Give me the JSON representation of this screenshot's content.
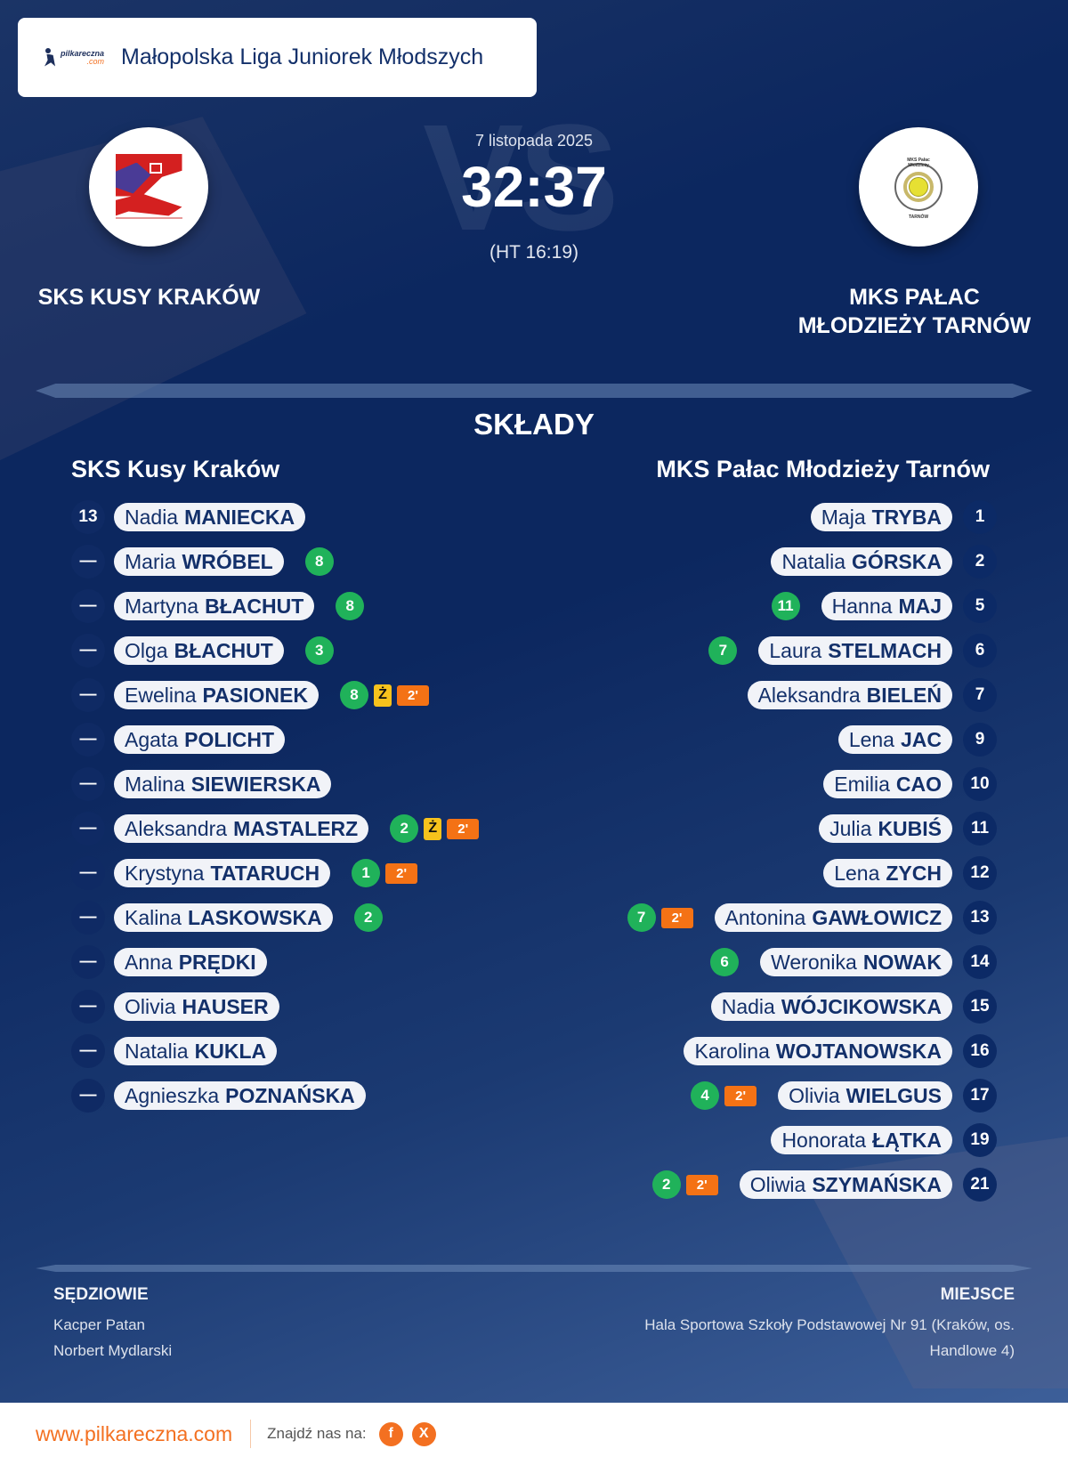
{
  "header": {
    "brand": {
      "name": "pilkareczna",
      "suffix": ".com"
    },
    "league": "Małopolska Liga Juniorek Młodszych"
  },
  "match": {
    "date": "7 listopada 2025",
    "score": "32:37",
    "halftime": "(HT 16:19)",
    "vs_watermark": "VS",
    "home": {
      "name": "SKS KUSY KRAKÓW"
    },
    "away": {
      "name_line1": "MKS PAŁAC",
      "name_line2": "MŁODZIEŻY TARNÓW",
      "crest_top": "MKS Pałac Młodzieży",
      "crest_bottom": "TARNÓW"
    }
  },
  "lineups": {
    "title": "SKŁADY",
    "home": {
      "team": "SKS Kusy Kraków",
      "players": [
        {
          "num": "13",
          "first": "Nadia",
          "last": "MANIECKA",
          "goals": null,
          "yellow": null,
          "susp": null
        },
        {
          "num": "—",
          "first": "Maria",
          "last": "WRÓBEL",
          "goals": "8",
          "yellow": null,
          "susp": null
        },
        {
          "num": "—",
          "first": "Martyna",
          "last": "BŁACHUT",
          "goals": "8",
          "yellow": null,
          "susp": null
        },
        {
          "num": "—",
          "first": "Olga",
          "last": "BŁACHUT",
          "goals": "3",
          "yellow": null,
          "susp": null
        },
        {
          "num": "—",
          "first": "Ewelina",
          "last": "PASIONEK",
          "goals": "8",
          "yellow": "Ż",
          "susp": "2'"
        },
        {
          "num": "—",
          "first": "Agata",
          "last": "POLICHT",
          "goals": null,
          "yellow": null,
          "susp": null
        },
        {
          "num": "—",
          "first": "Malina",
          "last": "SIEWIERSKA",
          "goals": null,
          "yellow": null,
          "susp": null
        },
        {
          "num": "—",
          "first": "Aleksandra",
          "last": "MASTALERZ",
          "goals": "2",
          "yellow": "Ż",
          "susp": "2'"
        },
        {
          "num": "—",
          "first": "Krystyna",
          "last": "TATARUCH",
          "goals": "1",
          "yellow": null,
          "susp": "2'"
        },
        {
          "num": "—",
          "first": "Kalina",
          "last": "LASKOWSKA",
          "goals": "2",
          "yellow": null,
          "susp": null
        },
        {
          "num": "—",
          "first": "Anna",
          "last": "PRĘDKI",
          "goals": null,
          "yellow": null,
          "susp": null
        },
        {
          "num": "—",
          "first": "Olivia",
          "last": "HAUSER",
          "goals": null,
          "yellow": null,
          "susp": null
        },
        {
          "num": "—",
          "first": "Natalia",
          "last": "KUKLA",
          "goals": null,
          "yellow": null,
          "susp": null
        },
        {
          "num": "—",
          "first": "Agnieszka",
          "last": "POZNAŃSKA",
          "goals": null,
          "yellow": null,
          "susp": null
        }
      ]
    },
    "away": {
      "team": "MKS Pałac Młodzieży Tarnów",
      "players": [
        {
          "num": "1",
          "first": "Maja",
          "last": "TRYBA",
          "goals": null,
          "susp": null
        },
        {
          "num": "2",
          "first": "Natalia",
          "last": "GÓRSKA",
          "goals": null,
          "susp": null
        },
        {
          "num": "5",
          "first": "Hanna",
          "last": "MAJ",
          "goals": "11",
          "susp": null
        },
        {
          "num": "6",
          "first": "Laura",
          "last": "STELMACH",
          "goals": "7",
          "susp": null
        },
        {
          "num": "7",
          "first": "Aleksandra",
          "last": "BIELEŃ",
          "goals": null,
          "susp": null
        },
        {
          "num": "9",
          "first": "Lena",
          "last": "JAC",
          "goals": null,
          "susp": null
        },
        {
          "num": "10",
          "first": "Emilia",
          "last": "CAO",
          "goals": null,
          "susp": null
        },
        {
          "num": "11",
          "first": "Julia",
          "last": "KUBIŚ",
          "goals": null,
          "susp": null
        },
        {
          "num": "12",
          "first": "Lena",
          "last": "ZYCH",
          "goals": null,
          "susp": null
        },
        {
          "num": "13",
          "first": "Antonina",
          "last": "GAWŁOWICZ",
          "goals": "7",
          "susp": "2'"
        },
        {
          "num": "14",
          "first": "Weronika",
          "last": "NOWAK",
          "goals": "6",
          "susp": null
        },
        {
          "num": "15",
          "first": "Nadia",
          "last": "WÓJCIKOWSKA",
          "goals": null,
          "susp": null
        },
        {
          "num": "16",
          "first": "Karolina",
          "last": "WOJTANOWSKA",
          "goals": null,
          "susp": null
        },
        {
          "num": "17",
          "first": "Olivia",
          "last": "WIELGUS",
          "goals": "4",
          "susp": "2'"
        },
        {
          "num": "19",
          "first": "Honorata",
          "last": "ŁĄTKA",
          "goals": null,
          "susp": null
        },
        {
          "num": "21",
          "first": "Oliwia",
          "last": "SZYMAŃSKA",
          "goals": "2",
          "susp": "2'"
        }
      ]
    }
  },
  "officials": {
    "title": "SĘDZIOWIE",
    "names": [
      "Kacper Patan",
      "Norbert Mydlarski"
    ]
  },
  "venue": {
    "title": "MIEJSCE",
    "line1": "Hala Sportowa Szkoły Podstawowej Nr 91 (Kraków, os.",
    "line2": "Handlowe 4)"
  },
  "footer": {
    "url": "www.pilkareczna.com",
    "find_us": "Znajdź nas na:",
    "social": [
      {
        "name": "facebook",
        "glyph": "f"
      },
      {
        "name": "x",
        "glyph": "X"
      }
    ]
  },
  "colors": {
    "accent": "#f37021",
    "navy": "#0c275f",
    "goals": "#20b25a",
    "yellow_card": "#f7c21c",
    "suspension": "#f47215"
  }
}
